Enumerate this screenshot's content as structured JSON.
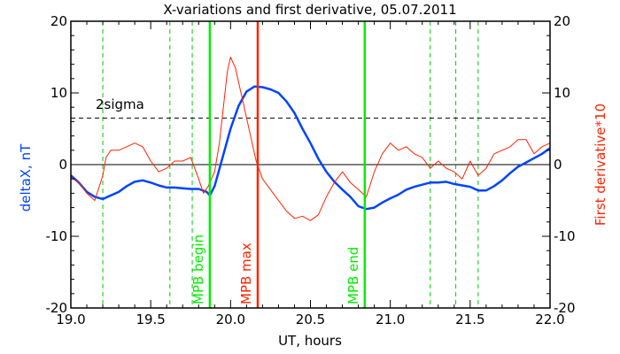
{
  "chart_data": {
    "type": "line",
    "title": "X-variations and first derivative, 05.07.2011",
    "xlabel": "UT, hours",
    "ylabel_left": "deltaX, nT",
    "ylabel_right": "First derivative*10",
    "xlim": [
      19.0,
      22.0
    ],
    "ylim_left": [
      -20,
      20
    ],
    "ylim_right": [
      -20,
      20
    ],
    "x_ticks": [
      "19.0",
      "19.5",
      "20.0",
      "20.5",
      "21.0",
      "21.5",
      "22.0"
    ],
    "y_ticks_left": [
      "20",
      "10",
      "0",
      "-10",
      "-20"
    ],
    "y_ticks_right": [
      "20",
      "10",
      "0",
      "-10",
      "-20"
    ],
    "grid": false,
    "colors": {
      "deltaX": "#0044ff",
      "derivative": "#ff2200",
      "mpb": "#00ee00",
      "mpb_max": "#ff2200",
      "dashed_green": "#00cc00",
      "sigma": "#000000",
      "zero": "#000000"
    },
    "sigma_level": 6.5,
    "sigma_label": "2sigma",
    "dashed_green_x": [
      19.2,
      19.62,
      19.76,
      21.25,
      21.41,
      21.55
    ],
    "vertical_markers": [
      {
        "label": "MPB begin",
        "x": 19.87,
        "color": "#00ee00"
      },
      {
        "label": "MPB max",
        "x": 20.17,
        "color": "#ff2200"
      },
      {
        "label": "MPB end",
        "x": 20.84,
        "color": "#00ee00"
      }
    ],
    "series": [
      {
        "name": "deltaX, nT",
        "axis": "left",
        "color": "#0044ff",
        "x": [
          19.0,
          19.05,
          19.1,
          19.15,
          19.2,
          19.25,
          19.3,
          19.35,
          19.4,
          19.45,
          19.5,
          19.55,
          19.6,
          19.65,
          19.7,
          19.75,
          19.8,
          19.85,
          19.87,
          19.9,
          19.95,
          20.0,
          20.05,
          20.1,
          20.15,
          20.2,
          20.25,
          20.3,
          20.35,
          20.4,
          20.45,
          20.5,
          20.55,
          20.6,
          20.65,
          20.7,
          20.75,
          20.8,
          20.85,
          20.9,
          20.95,
          21.0,
          21.05,
          21.1,
          21.15,
          21.2,
          21.25,
          21.3,
          21.35,
          21.4,
          21.45,
          21.5,
          21.55,
          21.6,
          21.65,
          21.7,
          21.75,
          21.8,
          21.85,
          21.9,
          21.95,
          22.0
        ],
        "y": [
          -1.5,
          -2.5,
          -3.8,
          -4.5,
          -4.8,
          -4.3,
          -3.8,
          -3.0,
          -2.4,
          -2.2,
          -2.5,
          -2.9,
          -3.2,
          -3.2,
          -3.3,
          -3.4,
          -3.4,
          -3.8,
          -4.3,
          -3.0,
          1.0,
          5.0,
          8.2,
          10.2,
          10.9,
          10.8,
          10.5,
          10.0,
          8.8,
          7.2,
          5.0,
          3.0,
          0.8,
          -1.0,
          -2.4,
          -3.5,
          -4.5,
          -5.8,
          -6.2,
          -6.0,
          -5.3,
          -4.7,
          -4.2,
          -3.5,
          -3.1,
          -2.8,
          -2.5,
          -2.5,
          -2.4,
          -2.7,
          -2.9,
          -3.1,
          -3.6,
          -3.6,
          -3.0,
          -2.2,
          -1.2,
          -0.3,
          0.3,
          0.9,
          1.5,
          2.3
        ]
      },
      {
        "name": "First derivative*10",
        "axis": "right",
        "color": "#ff2200",
        "x": [
          19.0,
          19.05,
          19.1,
          19.15,
          19.2,
          19.22,
          19.25,
          19.3,
          19.35,
          19.4,
          19.45,
          19.5,
          19.55,
          19.6,
          19.65,
          19.7,
          19.75,
          19.8,
          19.83,
          19.86,
          19.9,
          19.93,
          19.96,
          19.98,
          20.0,
          20.03,
          20.06,
          20.1,
          20.13,
          20.16,
          20.2,
          20.25,
          20.3,
          20.35,
          20.4,
          20.45,
          20.5,
          20.55,
          20.6,
          20.65,
          20.7,
          20.75,
          20.8,
          20.85,
          20.9,
          20.95,
          21.0,
          21.05,
          21.1,
          21.15,
          21.2,
          21.25,
          21.3,
          21.35,
          21.4,
          21.45,
          21.5,
          21.55,
          21.6,
          21.65,
          21.7,
          21.75,
          21.8,
          21.85,
          21.9,
          21.95,
          22.0
        ],
        "y": [
          -1.8,
          -2.5,
          -4.0,
          -5.0,
          -1.5,
          1.0,
          2.0,
          2.0,
          2.5,
          3.0,
          2.5,
          0.5,
          -1.0,
          -0.5,
          0.5,
          0.5,
          1.0,
          -2.0,
          -4.0,
          -3.0,
          -1.0,
          3.0,
          9.0,
          13.0,
          15.0,
          13.5,
          10.5,
          6.5,
          3.5,
          0.5,
          -2.0,
          -3.5,
          -5.0,
          -6.5,
          -7.5,
          -7.2,
          -7.8,
          -7.0,
          -4.5,
          -2.5,
          -1.0,
          -2.5,
          -3.5,
          -4.5,
          -1.0,
          1.5,
          3.0,
          2.0,
          2.5,
          1.5,
          1.0,
          -0.5,
          0.5,
          -0.5,
          -1.0,
          -2.0,
          0.5,
          -1.5,
          -0.5,
          1.5,
          2.0,
          2.5,
          3.5,
          3.5,
          1.5,
          2.5,
          3.0
        ]
      }
    ]
  }
}
